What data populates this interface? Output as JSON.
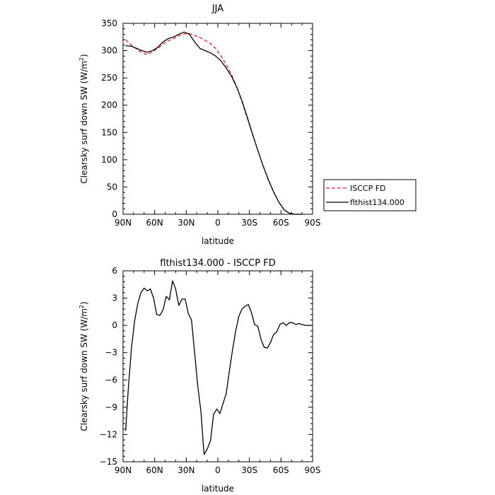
{
  "chart_data": [
    {
      "type": "line",
      "title": "JJA",
      "xlabel": "latitude",
      "ylabel": "Clearsky surf down SW (W/m²)",
      "ylabel_parts": {
        "prefix": "Clearsky surf down SW (W/m",
        "sup": "2",
        "suffix": ")"
      },
      "xlim": [
        90,
        -90
      ],
      "ylim": [
        0,
        350
      ],
      "x_ticks": [
        {
          "value": 90,
          "label": "90N"
        },
        {
          "value": 60,
          "label": "60N"
        },
        {
          "value": 30,
          "label": "30N"
        },
        {
          "value": 0,
          "label": "0"
        },
        {
          "value": -30,
          "label": "30S"
        },
        {
          "value": -60,
          "label": "60S"
        },
        {
          "value": -90,
          "label": "90S"
        }
      ],
      "y_ticks": [
        0,
        50,
        100,
        150,
        200,
        250,
        300,
        350
      ],
      "legend_position": "outside-right",
      "series": [
        {
          "name": "ISCCP FD",
          "color": "#e8201e",
          "dash": "dashed",
          "x": [
            87.5,
            82,
            77,
            72,
            67,
            62,
            57,
            52,
            47,
            42,
            37,
            32,
            27,
            22,
            17,
            12,
            7,
            2,
            -3,
            -8,
            -13,
            -18,
            -23,
            -28,
            -33,
            -38,
            -43,
            -48,
            -53,
            -58,
            -63,
            -68,
            -73,
            -78,
            -80
          ],
          "y": [
            320,
            310,
            303,
            296,
            293,
            298,
            304,
            312,
            318,
            322,
            327,
            331,
            331,
            328,
            324,
            319,
            313,
            304,
            290,
            274,
            256,
            233,
            206,
            176,
            146,
            117,
            89,
            64,
            41,
            22,
            8,
            2,
            0,
            0,
            0
          ]
        },
        {
          "name": "flthist134.000",
          "color": "#000000",
          "dash": "solid",
          "x": [
            87.5,
            82,
            77,
            72,
            67,
            62,
            57,
            52,
            47,
            42,
            37,
            32,
            27,
            22,
            17,
            12,
            7,
            2,
            -3,
            -8,
            -13,
            -18,
            -23,
            -28,
            -33,
            -38,
            -43,
            -48,
            -53,
            -58,
            -63,
            -68,
            -73,
            -78,
            -80
          ],
          "y": [
            309,
            308,
            304,
            300,
            297,
            300,
            306,
            316,
            322,
            325,
            330,
            334,
            330,
            316,
            304,
            300,
            296,
            290,
            281,
            268,
            253,
            233,
            208,
            178,
            147,
            117,
            89,
            63,
            41,
            22,
            8,
            2,
            0,
            0,
            0
          ]
        }
      ]
    },
    {
      "type": "line",
      "title": "flthist134.000 - ISCCP FD",
      "xlabel": "latitude",
      "ylabel": "Clearsky surf down SW (W/m²)",
      "ylabel_parts": {
        "prefix": "Clearsky surf down SW (W/m",
        "sup": "2",
        "suffix": ")"
      },
      "xlim": [
        90,
        -90
      ],
      "ylim": [
        -15,
        6
      ],
      "x_ticks": [
        {
          "value": 90,
          "label": "90N"
        },
        {
          "value": 60,
          "label": "60N"
        },
        {
          "value": 30,
          "label": "30N"
        },
        {
          "value": 0,
          "label": "0"
        },
        {
          "value": -30,
          "label": "30S"
        },
        {
          "value": -60,
          "label": "60S"
        },
        {
          "value": -90,
          "label": "90S"
        }
      ],
      "y_ticks": [
        -15,
        -12,
        -9,
        -6,
        -3,
        0,
        3,
        6
      ],
      "series": [
        {
          "color": "#000000",
          "dash": "solid",
          "x": [
            87.5,
            85,
            82,
            79,
            76,
            73,
            70,
            67,
            64,
            61,
            58,
            55,
            52,
            49,
            46,
            43,
            40,
            37,
            34,
            31,
            28,
            25,
            22,
            19,
            16,
            13,
            10,
            7,
            4,
            1,
            -2,
            -5,
            -8,
            -11,
            -14,
            -17,
            -20,
            -23,
            -26,
            -29,
            -32,
            -35,
            -38,
            -41,
            -44,
            -47,
            -50,
            -53,
            -56,
            -59,
            -62,
            -65,
            -68,
            -71,
            -74,
            -77,
            -80,
            -83,
            -86,
            -89
          ],
          "y": [
            -11.6,
            -7,
            -2.5,
            0.5,
            2.4,
            3.6,
            4.1,
            3.8,
            4.0,
            3.0,
            1.2,
            1.1,
            1.7,
            3.2,
            2.8,
            4.9,
            4.0,
            2.2,
            2.9,
            2.9,
            1.3,
            0.6,
            -3.0,
            -6.7,
            -9.5,
            -14.2,
            -13.6,
            -12.7,
            -9.8,
            -9.2,
            -9.7,
            -8.6,
            -7.5,
            -5.0,
            -2.7,
            -0.6,
            1.0,
            1.8,
            2.1,
            2.3,
            1.4,
            0.1,
            -0.1,
            -1.5,
            -2.4,
            -2.5,
            -1.9,
            -1.0,
            -0.7,
            0.1,
            0.3,
            0.0,
            0.3,
            0.3,
            0.1,
            0.2,
            0.1,
            0.0,
            0.0,
            0.0
          ]
        }
      ]
    }
  ]
}
